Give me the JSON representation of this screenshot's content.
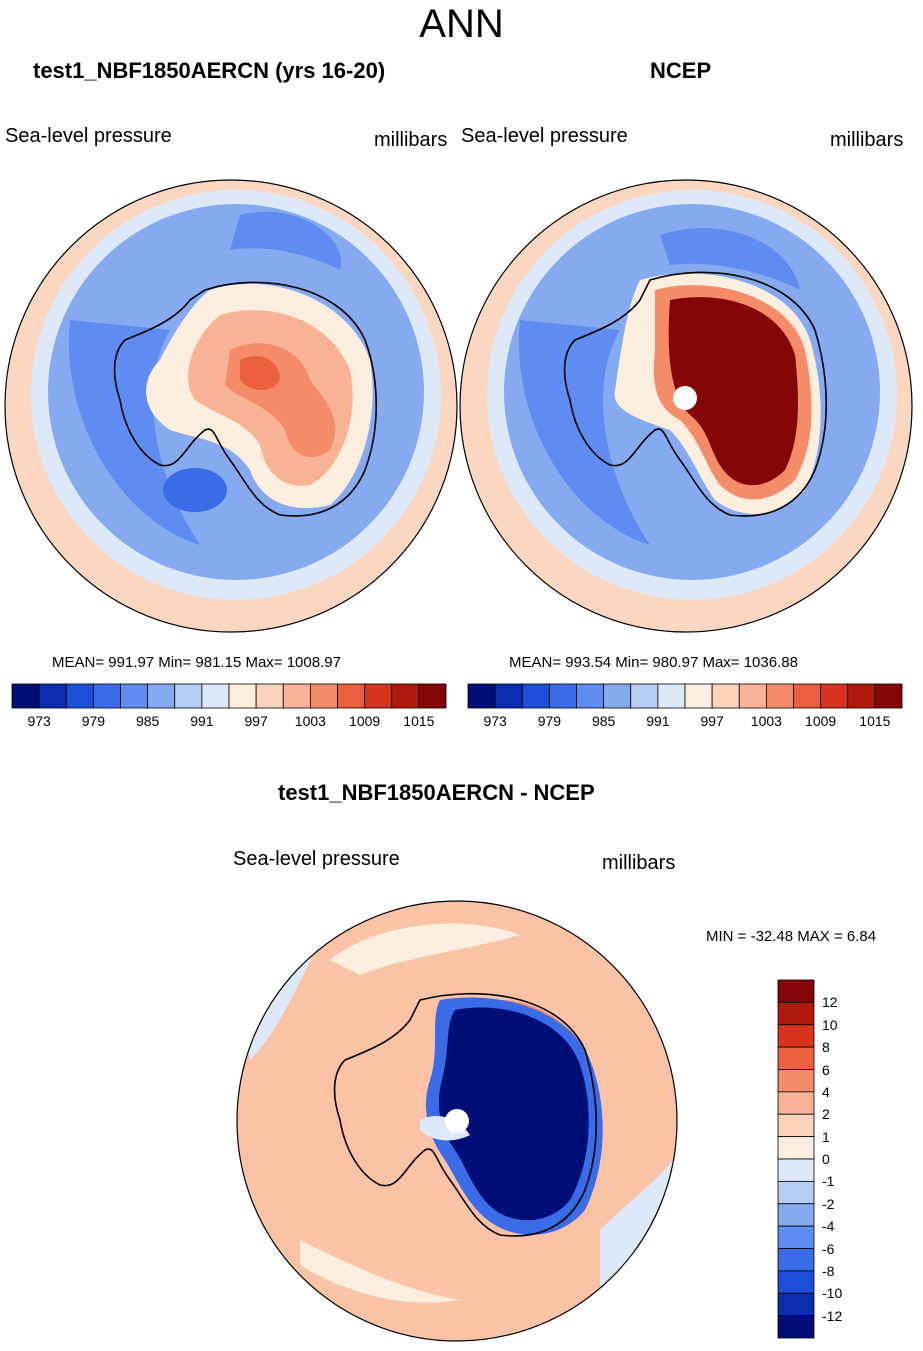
{
  "title": "ANN",
  "panels": [
    {
      "title": "test1_NBF1850AERCN (yrs 16-20)",
      "variable": "Sea-level pressure",
      "units": "millibars",
      "stats": "MEAN= 991.97  Min= 981.15  Max= 1008.97"
    },
    {
      "title": "NCEP",
      "variable": "Sea-level pressure",
      "units": "millibars",
      "stats": "MEAN= 993.54  Min= 980.97  Max= 1036.88"
    },
    {
      "title": "test1_NBF1850AERCN - NCEP",
      "variable": "Sea-level pressure",
      "units": "millibars",
      "stats": "MIN = -32.48 MAX =   6.84"
    }
  ],
  "colorbar_h": {
    "colors": [
      "#000e78",
      "#0b2db0",
      "#1e4fd8",
      "#3a6ce8",
      "#5f8cf0",
      "#86aaf0",
      "#b6cef2",
      "#dde9f8",
      "#fbeede",
      "#fbd3bb",
      "#f8b295",
      "#f48c6a",
      "#ec5f3f",
      "#d7341f",
      "#b01a0e",
      "#840606"
    ],
    "labels": [
      "973",
      "979",
      "985",
      "991",
      "997",
      "1003",
      "1009",
      "1015"
    ]
  },
  "colorbar_v": {
    "colors": [
      "#840606",
      "#b01a0e",
      "#d7341f",
      "#ec5f3f",
      "#f48c6a",
      "#f8b295",
      "#fbd3bb",
      "#fbeede",
      "#dde9f8",
      "#b6cef2",
      "#86aaf0",
      "#5f8cf0",
      "#3a6ce8",
      "#1e4fd8",
      "#0b2db0",
      "#000e78"
    ],
    "labels": [
      "12",
      "10",
      "8",
      "6",
      "4",
      "2",
      "1",
      "0",
      "-1",
      "-2",
      "-4",
      "-6",
      "-8",
      "-10",
      "-12"
    ]
  },
  "map_colors": {
    "ocean_outer": "#fbd7c2",
    "ocean_mid": "#dde9f8",
    "ocean_blue": "#86aaf0",
    "ocean_deep": "#5f8cf0",
    "ice_light": "#fbeede",
    "ice_mid": "#f8b295",
    "ice_high": "#ec5f3f",
    "ncep_high": "#840606",
    "diff_ocean": "#fbc3a6",
    "diff_low": "#000e78"
  }
}
